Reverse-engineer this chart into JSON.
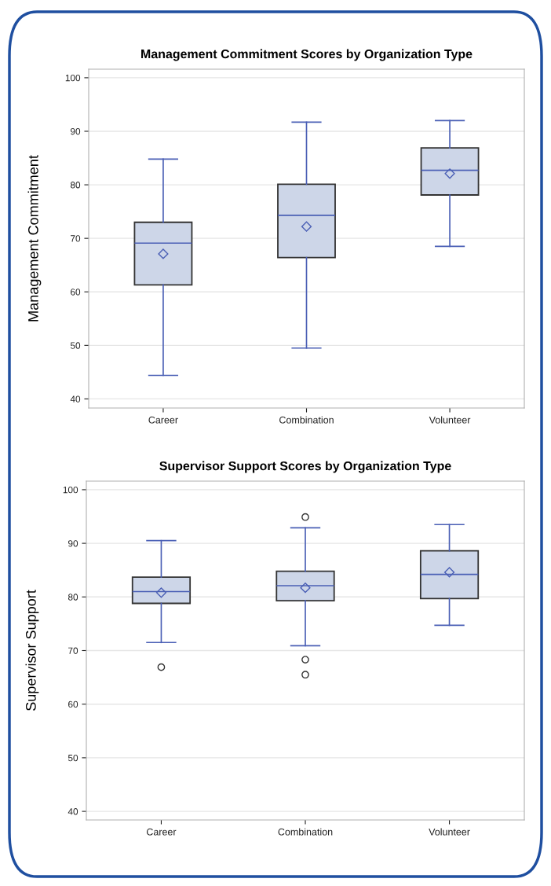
{
  "chart_data": [
    {
      "type": "box",
      "title": "Management Commitment Scores by Organization Type",
      "ylabel": "Management Commitment",
      "categories": [
        "Career",
        "Combination",
        "Volunteer"
      ],
      "series": [
        {
          "color": "#cdd6e8",
          "boxes": [
            {
              "low": 44.4,
              "q1": 61.3,
              "median": 69.1,
              "q3": 73.0,
              "high": 84.8,
              "mean": 67.1
            },
            {
              "low": 49.5,
              "q1": 66.4,
              "median": 74.3,
              "q3": 80.1,
              "high": 91.7,
              "mean": 72.2
            },
            {
              "low": 68.5,
              "q1": 78.1,
              "median": 82.7,
              "q3": 86.9,
              "high": 92.0,
              "mean": 82.1
            }
          ]
        }
      ],
      "ylim": [
        38.3,
        101.6
      ],
      "yticks": [
        40,
        50,
        60,
        70,
        80,
        90,
        100
      ],
      "grid": "y",
      "marker": "diamond"
    },
    {
      "type": "box",
      "title": "Supervisor Support Scores by Organization Type",
      "ylabel": "Supervisor Support",
      "categories": [
        "Career",
        "Combination",
        "Volunteer"
      ],
      "series": [
        {
          "color": "#cdd6e8",
          "boxes": [
            {
              "low": 71.5,
              "q1": 78.8,
              "median": 81.0,
              "q3": 83.7,
              "high": 90.5,
              "mean": 80.8,
              "outliers": [
                66.9
              ]
            },
            {
              "low": 70.9,
              "q1": 79.3,
              "median": 82.1,
              "q3": 84.8,
              "high": 92.9,
              "mean": 81.7,
              "outliers": [
                94.9,
                68.3,
                65.5
              ]
            },
            {
              "low": 74.7,
              "q1": 79.7,
              "median": 84.2,
              "q3": 88.6,
              "high": 93.5,
              "mean": 84.6
            }
          ]
        }
      ],
      "ylim": [
        38.4,
        101.6
      ],
      "yticks": [
        40,
        50,
        60,
        70,
        80,
        90,
        100
      ],
      "grid": "y",
      "marker": "diamond"
    }
  ]
}
